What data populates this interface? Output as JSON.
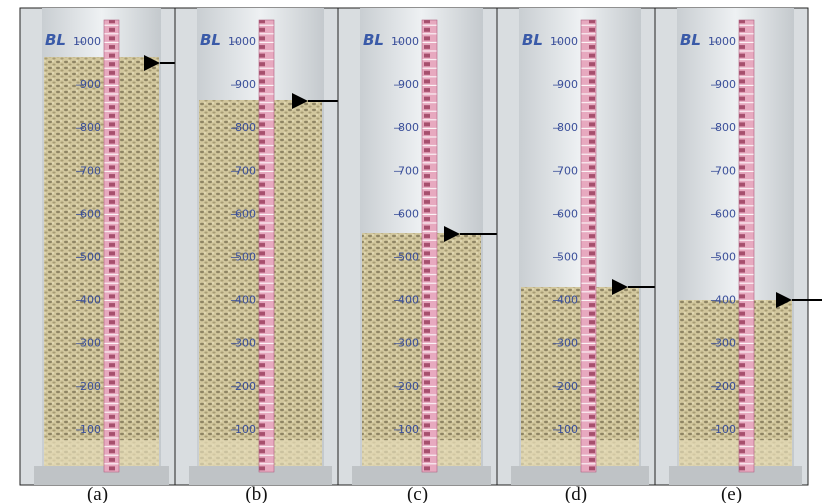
{
  "logo": "BL",
  "panels": [
    {
      "label": "(a)"
    },
    {
      "label": "(b)"
    },
    {
      "label": "(c)"
    },
    {
      "label": "(d)"
    },
    {
      "label": "(e)"
    }
  ],
  "scale": {
    "values": [
      1000,
      900,
      800,
      700,
      600,
      500,
      400,
      300,
      200,
      100
    ]
  }
}
